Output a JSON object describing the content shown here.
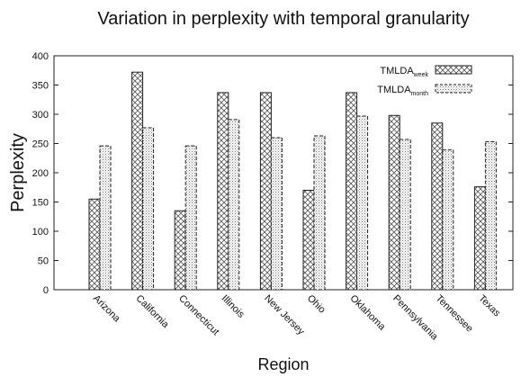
{
  "chart_data": {
    "type": "bar",
    "title": "Variation in perplexity with temporal granularity",
    "xlabel": "Region",
    "ylabel": "Perplexity",
    "ylim": [
      0,
      400
    ],
    "yticks": [
      0,
      50,
      100,
      150,
      200,
      250,
      300,
      350,
      400
    ],
    "categories": [
      "Arizona",
      "California",
      "Connecticut",
      "Illinois",
      "New Jersey",
      "Ohio",
      "Oklahoma",
      "Pennsylvania",
      "Tennessee",
      "Texas"
    ],
    "series": [
      {
        "name": "TMLDA",
        "subscript": "week",
        "fill": "crosshatch",
        "stroke": "solid",
        "values": [
          155,
          372,
          135,
          337,
          337,
          170,
          337,
          298,
          285,
          176
        ]
      },
      {
        "name": "TMLDA",
        "subscript": "month",
        "fill": "dots",
        "stroke": "dashed",
        "values": [
          246,
          277,
          246,
          291,
          260,
          263,
          297,
          257,
          239,
          253
        ]
      }
    ],
    "legend_position": "top-right",
    "grid": false
  }
}
